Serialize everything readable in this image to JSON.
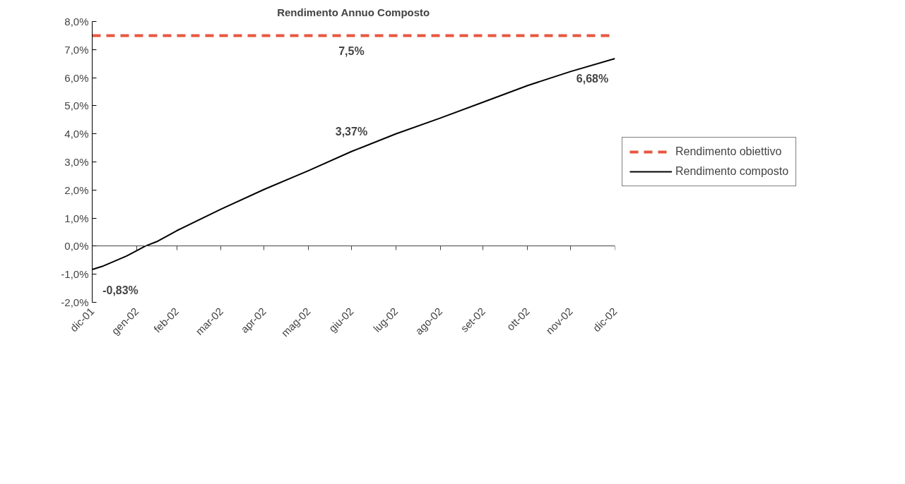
{
  "chart_data": {
    "type": "line",
    "title": "Rendimento Annuo Composto",
    "xlim": [
      "2001-12-31",
      "2002-12-31"
    ],
    "xticks": [
      {
        "value": "2001-12-31",
        "label": "dic-01"
      },
      {
        "value": "2002-01-31",
        "label": "gen-02"
      },
      {
        "value": "2002-02-28",
        "label": "feb-02"
      },
      {
        "value": "2002-03-31",
        "label": "mar-02"
      },
      {
        "value": "2002-04-30",
        "label": "apr-02"
      },
      {
        "value": "2002-05-31",
        "label": "mag-02"
      },
      {
        "value": "2002-06-30",
        "label": "giu-02"
      },
      {
        "value": "2002-07-31",
        "label": "lug-02"
      },
      {
        "value": "2002-08-31",
        "label": "ago-02"
      },
      {
        "value": "2002-09-30",
        "label": "set-02"
      },
      {
        "value": "2002-10-31",
        "label": "ott-02"
      },
      {
        "value": "2002-11-30",
        "label": "nov-02"
      },
      {
        "value": "2002-12-31",
        "label": "dic-02"
      }
    ],
    "ylim": [
      -2,
      8
    ],
    "yticks": [
      {
        "value": -2,
        "label": "-2,0%"
      },
      {
        "value": -1,
        "label": "-1,0%"
      },
      {
        "value": 0,
        "label": "0,0%"
      },
      {
        "value": 1,
        "label": "1,0%"
      },
      {
        "value": 2,
        "label": "2,0%"
      },
      {
        "value": 3,
        "label": "3,0%"
      },
      {
        "value": 4,
        "label": "4,0%"
      },
      {
        "value": 5,
        "label": "5,0%"
      },
      {
        "value": 6,
        "label": "6,0%"
      },
      {
        "value": 7,
        "label": "7,0%"
      },
      {
        "value": 8,
        "label": "8,0%"
      }
    ],
    "series": [
      {
        "name": "Rendimento obiettivo",
        "color": "#e8573f",
        "line_style": "dashed",
        "x": [
          "2001-12-31",
          "2002-12-31"
        ],
        "values": [
          7.5,
          7.5
        ]
      },
      {
        "name": "Rendimento composto",
        "color": "#000000",
        "line_style": "solid",
        "x": [
          "2001-12-31",
          "2002-01-07",
          "2002-01-24",
          "2002-01-31",
          "2002-02-06",
          "2002-02-14",
          "2002-02-28",
          "2002-03-31",
          "2002-04-30",
          "2002-05-31",
          "2002-06-30",
          "2002-07-31",
          "2002-08-31",
          "2002-09-30",
          "2002-10-31",
          "2002-11-30",
          "2002-12-31"
        ],
        "values": [
          -0.83,
          -0.72,
          -0.35,
          -0.16,
          0.0,
          0.16,
          0.55,
          1.32,
          2.02,
          2.69,
          3.37,
          4.0,
          4.56,
          5.13,
          5.72,
          6.22,
          6.68
        ]
      }
    ],
    "annotations": [
      {
        "text": "7,5%",
        "x": "2002-06-30",
        "y": 7.5
      },
      {
        "text": "-0,83%",
        "x": "2001-12-31",
        "y": -0.83
      },
      {
        "text": "3,37%",
        "x": "2002-06-30",
        "y": 3.37
      },
      {
        "text": "6,68%",
        "x": "2002-12-31",
        "y": 6.68
      }
    ],
    "legend": "right",
    "marker": "none"
  }
}
